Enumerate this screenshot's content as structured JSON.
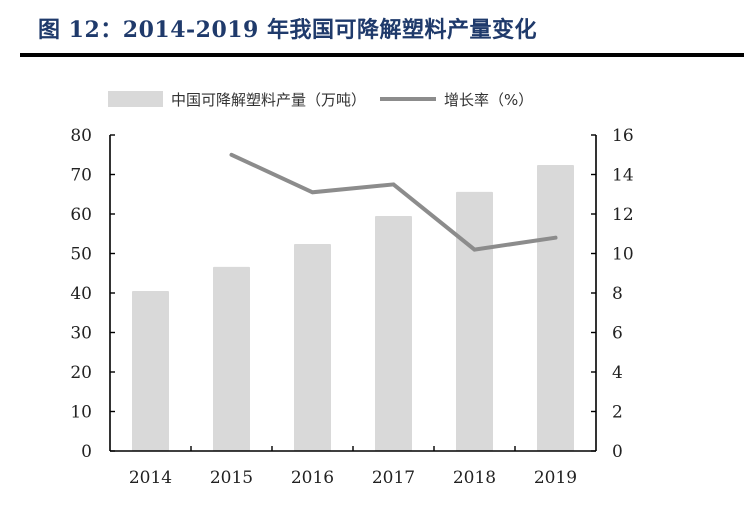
{
  "title": "图 12：2014-2019 年我国可降解塑料产量变化",
  "legend": {
    "bar_label": "中国可降解塑料产量（万吨）",
    "line_label": "增长率（%）"
  },
  "colors": {
    "title": "#1f3a6b",
    "bar": "#d9d9d9",
    "line": "#8c8c8c",
    "axis": "#000000"
  },
  "chart_data": {
    "type": "bar+line",
    "title": "图 12：2014-2019 年我国可降解塑料产量变化",
    "categories": [
      "2014",
      "2015",
      "2016",
      "2017",
      "2018",
      "2019"
    ],
    "series": [
      {
        "name": "中国可降解塑料产量（万吨）",
        "type": "bar",
        "axis": "left",
        "values": [
          40.5,
          46.6,
          52.4,
          59.5,
          65.6,
          72.4
        ]
      },
      {
        "name": "增长率（%）",
        "type": "line",
        "axis": "right",
        "values": [
          null,
          15.0,
          13.1,
          13.5,
          10.2,
          10.8
        ]
      }
    ],
    "xlabel": "",
    "ylabel_left": "",
    "ylabel_right": "",
    "ylim_left": [
      0,
      80
    ],
    "ylim_right": [
      0,
      16
    ],
    "yticks_left": [
      0,
      10,
      20,
      30,
      40,
      50,
      60,
      70,
      80
    ],
    "yticks_right": [
      0,
      2,
      4,
      6,
      8,
      10,
      12,
      14,
      16
    ],
    "grid": false,
    "legend_position": "top"
  }
}
